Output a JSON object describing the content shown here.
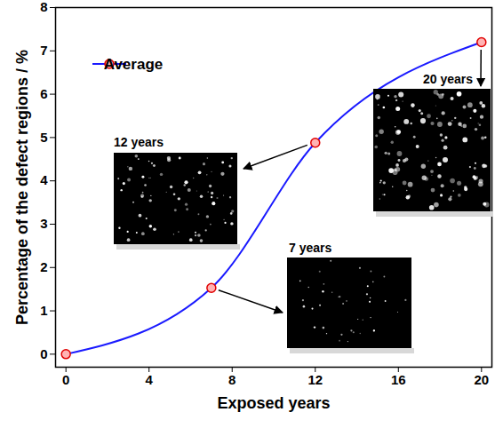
{
  "chart_data": {
    "type": "line",
    "x": [
      0,
      7,
      12,
      20
    ],
    "series": [
      {
        "name": "Average",
        "color": "#1a1aff",
        "values": [
          0,
          1.53,
          4.88,
          7.2
        ],
        "marker": "circle"
      }
    ],
    "xlabel": "Exposed years",
    "ylabel": "Percentage of the defect regions / %",
    "xlim": [
      -0.5,
      20.5
    ],
    "ylim": [
      -0.3,
      8
    ],
    "xticks": [
      0,
      4,
      8,
      12,
      16,
      20
    ],
    "yticks": [
      0,
      1,
      2,
      3,
      4,
      5,
      6,
      7,
      8
    ],
    "grid": false,
    "legend": "top-left",
    "annotations": [
      {
        "text": "7 years",
        "x": 7,
        "y": 1.53
      },
      {
        "text": "12 years",
        "x": 12,
        "y": 4.88
      },
      {
        "text": "20 years",
        "x": 20,
        "y": 7.2
      }
    ]
  }
}
